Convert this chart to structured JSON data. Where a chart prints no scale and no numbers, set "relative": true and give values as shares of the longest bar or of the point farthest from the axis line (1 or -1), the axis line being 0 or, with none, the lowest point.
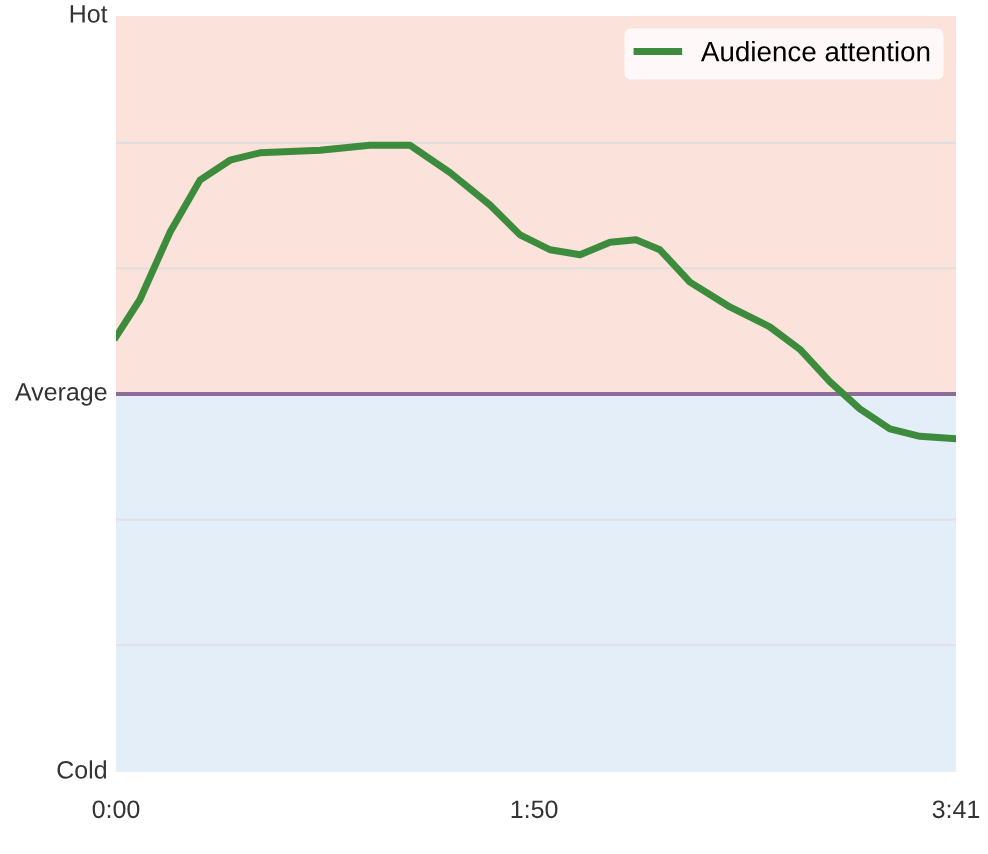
{
  "chart_data": {
    "type": "line",
    "relative": true,
    "x": [
      0,
      6.3,
      14.2,
      22.1,
      30,
      37.9,
      53.7,
      66.8,
      77.4,
      87.9,
      98.4,
      106.3,
      114.2,
      122.1,
      130,
      136.8,
      143.1,
      151,
      161.5,
      172,
      179.9,
      187.8,
      195.7,
      203.6,
      211.5,
      221
    ],
    "series": [
      {
        "name": "Audience attention",
        "color": "#3d8b3d",
        "values": [
          0.23,
          0.38,
          0.65,
          0.86,
          0.94,
          0.97,
          0.98,
          1,
          1,
          0.89,
          0.76,
          0.64,
          0.58,
          0.56,
          0.61,
          0.62,
          0.58,
          0.45,
          0.35,
          0.27,
          0.18,
          0.05,
          -0.06,
          -0.14,
          -0.17,
          -0.18
        ]
      }
    ],
    "xlim": [
      0,
      221
    ],
    "xticks": [
      {
        "value": 0,
        "label": "0:00"
      },
      {
        "value": 110,
        "label": "1:50"
      },
      {
        "value": 221,
        "label": "3:41"
      }
    ],
    "ref_lines": [
      {
        "axis": "y",
        "value": 0,
        "label": "Average",
        "color": "#8a6d9a"
      },
      {
        "axis": "y",
        "value": 1.01,
        "label": null,
        "color": "#e2dede"
      },
      {
        "axis": "y",
        "value": 0.505,
        "label": null,
        "color": "#e2dede"
      },
      {
        "axis": "y",
        "value": -0.505,
        "label": null,
        "color": "#e2e2e6"
      },
      {
        "axis": "y",
        "value": -1.01,
        "label": null,
        "color": "#e2e2e6"
      }
    ],
    "bands": [
      {
        "axis": "y",
        "from": 0,
        "to": 1.52,
        "label": "Hot",
        "color": "#fbe3dc"
      },
      {
        "axis": "y",
        "from": -1.52,
        "to": 0,
        "label": "Cold",
        "color": "#e3eef9"
      }
    ],
    "legend": "top right",
    "marker": "none",
    "line_style": "solid"
  }
}
